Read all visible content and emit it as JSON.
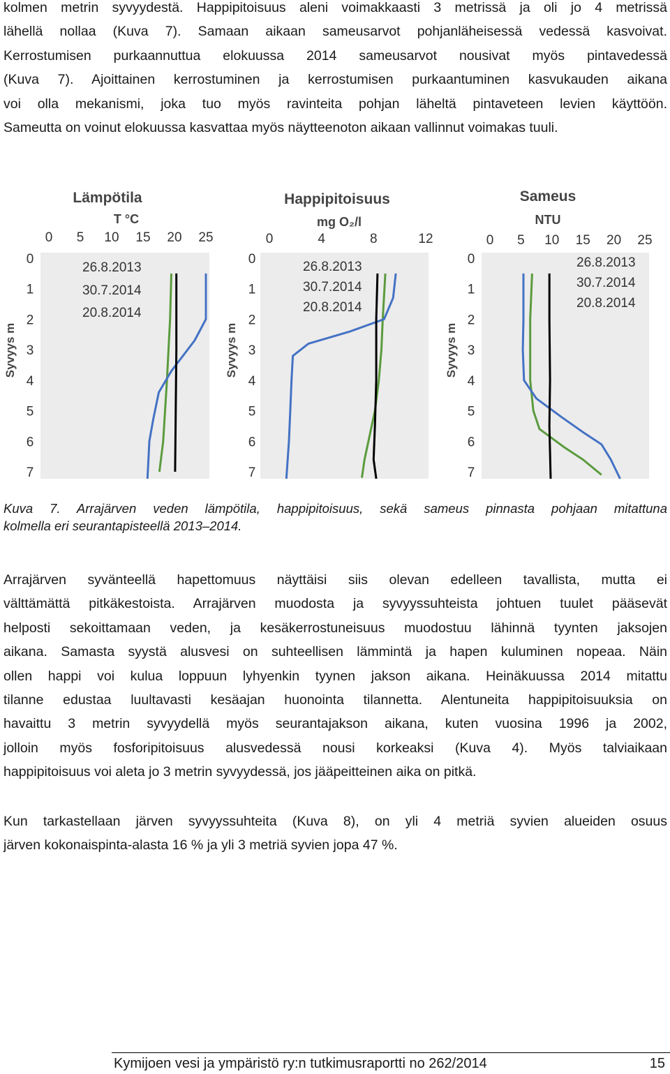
{
  "paragraphs": {
    "p1": [
      "kolmen metrin syvyydestä. Happipitoisuus aleni voimakkaasti 3 metrissä ja oli jo 4 metrissä",
      "lähellä nollaa (Kuva 7). Samaan aikaan sameusarvot pohjanläheisessä vedessä kasvoivat.",
      "Kerrostumisen purkaannuttua elokuussa 2014 sameusarvot nousivat myös pintavedessä",
      "(Kuva 7). Ajoittainen kerrostuminen ja kerrostumisen purkaantuminen kasvukauden aikana",
      "voi olla mekanismi, joka tuo myös ravinteita pohjan läheltä pintaveteen levien käyttöön.",
      "Sameutta on voinut elokuussa kasvattaa myös näytteenoton aikaan vallinnut voimakas tuuli."
    ],
    "p2": [
      "Arrajärven syvänteellä hapettomuus näyttäisi siis olevan edelleen tavallista, mutta ei",
      "välttämättä pitkäkestoista. Arrajärven muodosta ja syvyyssuhteista johtuen tuulet pääsevät",
      "helposti sekoittamaan veden, ja kesäkerrostuneisuus muodostuu lähinnä tyynten jaksojen",
      "aikana. Samasta syystä alusvesi on suhteellisen lämmintä ja hapen kuluminen nopeaa. Näin",
      "ollen happi voi kulua loppuun lyhyenkin tyynen jakson aikana. Heinäkuussa 2014 mitattu",
      "tilanne edustaa luultavasti kesäajan huonointa tilannetta. Alentuneita happipitoisuuksia on",
      "havaittu 3 metrin syvyydellä myös seurantajakson aikana, kuten vuosina 1996 ja 2002,",
      "jolloin myös fosforipitoisuus alusvedessä nousi korkeaksi (Kuva 4). Myös talviaikaan",
      "happipitoisuus voi aleta jo 3 metrin syvyydessä, jos jääpeitteinen aika on pitkä."
    ],
    "p3": [
      "Kun tarkastellaan järven syvyyssuhteita (Kuva 8), on yli 4 metriä syvien alueiden osuus",
      "järven kokonaispintа-alasta 16 % ja yli 3 metriä syvien jopa 47 %."
    ]
  },
  "caption": [
    "Kuva 7. Arrajärven veden lämpötila, happipitoisuus, sekä sameus pinnasta pohjaan mitattuna",
    "kolmella eri seurantapisteellä 2013–2014."
  ],
  "footer": {
    "text": "Kymijoen vesi ja ympäristö ry:n tutkimusraportti no 262/2014",
    "page": "15"
  },
  "colors": {
    "s2013": "#5b9b3e",
    "s2014a": "#4472c4",
    "s2014b": "#000000"
  },
  "chart_data": [
    {
      "type": "line",
      "title": "Lämpötila",
      "xlabel": "T °C",
      "ylabel": "Syvyys m",
      "xlim": [
        0,
        25
      ],
      "ylim": [
        0,
        7
      ],
      "y_inverted": true,
      "xticks": [
        "0",
        "5",
        "10",
        "15",
        "20",
        "25"
      ],
      "yticks": [
        "0",
        "1",
        "2",
        "3",
        "4",
        "5",
        "6",
        "7"
      ],
      "series": [
        {
          "name": "26.8.2013",
          "color": "#5b9b3e",
          "points": [
            [
              19.5,
              0.5
            ],
            [
              19.3,
              2
            ],
            [
              18.8,
              4
            ],
            [
              18.2,
              6
            ],
            [
              17.6,
              7
            ]
          ]
        },
        {
          "name": "30.7.2014",
          "color": "#4472c4",
          "points": [
            [
              25.0,
              0.5
            ],
            [
              25.0,
              2
            ],
            [
              23.2,
              2.7
            ],
            [
              19.5,
              3.7
            ],
            [
              17.5,
              4.4
            ],
            [
              16.6,
              5.3
            ],
            [
              16.0,
              6
            ],
            [
              15.7,
              7.3
            ]
          ]
        },
        {
          "name": "20.8.2014",
          "color": "#000000",
          "points": [
            [
              20.3,
              0.5
            ],
            [
              20.3,
              3
            ],
            [
              20.2,
              5
            ],
            [
              20.1,
              7
            ]
          ]
        }
      ]
    },
    {
      "type": "line",
      "title": "Happipitoisuus",
      "xlabel": "mg O₂/l",
      "ylabel": "Syvyys m",
      "xlim": [
        0,
        12
      ],
      "ylim": [
        0,
        7
      ],
      "y_inverted": true,
      "xticks": [
        "0",
        "4",
        "8",
        "12"
      ],
      "yticks": [
        "0",
        "1",
        "2",
        "3",
        "4",
        "5",
        "6",
        "7"
      ],
      "series": [
        {
          "name": "26.8.2013",
          "color": "#5b9b3e",
          "points": [
            [
              8.9,
              0.5
            ],
            [
              8.7,
              2
            ],
            [
              8.6,
              3
            ],
            [
              8.4,
              4
            ],
            [
              8.1,
              5
            ],
            [
              7.6,
              6
            ],
            [
              7.3,
              6.6
            ],
            [
              7.1,
              7.2
            ]
          ]
        },
        {
          "name": "30.7.2014",
          "color": "#4472c4",
          "points": [
            [
              9.7,
              0.5
            ],
            [
              9.5,
              1.3
            ],
            [
              8.8,
              2.0
            ],
            [
              6.2,
              2.4
            ],
            [
              3.0,
              2.8
            ],
            [
              1.8,
              3.2
            ],
            [
              1.7,
              4.0
            ],
            [
              1.6,
              5.0
            ],
            [
              1.5,
              6.0
            ],
            [
              1.3,
              7.3
            ]
          ]
        },
        {
          "name": "20.8.2014",
          "color": "#000000",
          "points": [
            [
              8.3,
              0.5
            ],
            [
              8.2,
              2
            ],
            [
              8.2,
              4
            ],
            [
              8.1,
              5.5
            ],
            [
              8.0,
              6.6
            ],
            [
              8.2,
              7.3
            ]
          ]
        }
      ]
    },
    {
      "type": "line",
      "title": "Sameus",
      "xlabel": "NTU",
      "ylabel": "Syvyys m",
      "xlim": [
        0,
        25
      ],
      "ylim": [
        0,
        7
      ],
      "y_inverted": true,
      "xticks": [
        "0",
        "5",
        "10",
        "15",
        "20",
        "25"
      ],
      "yticks": [
        "0",
        "1",
        "2",
        "3",
        "4",
        "5",
        "6",
        "7"
      ],
      "series": [
        {
          "name": "26.8.2013",
          "color": "#5b9b3e",
          "points": [
            [
              6.8,
              0.5
            ],
            [
              6.5,
              2
            ],
            [
              6.5,
              4
            ],
            [
              7.0,
              5
            ],
            [
              8.0,
              5.6
            ],
            [
              12.0,
              6.2
            ],
            [
              15.0,
              6.6
            ],
            [
              18.0,
              7.1
            ]
          ]
        },
        {
          "name": "30.7.2014",
          "color": "#4472c4",
          "points": [
            [
              5.4,
              0.5
            ],
            [
              5.4,
              2
            ],
            [
              5.3,
              3
            ],
            [
              5.5,
              4
            ],
            [
              7.5,
              4.6
            ],
            [
              11.5,
              5.2
            ],
            [
              15.0,
              5.7
            ],
            [
              18.0,
              6.1
            ],
            [
              19.5,
              6.6
            ],
            [
              21.0,
              7.3
            ]
          ]
        },
        {
          "name": "20.8.2014",
          "color": "#000000",
          "points": [
            [
              9.6,
              0.5
            ],
            [
              9.6,
              2
            ],
            [
              9.7,
              4
            ],
            [
              9.6,
              5.5
            ],
            [
              9.8,
              7.3
            ]
          ]
        }
      ]
    }
  ]
}
